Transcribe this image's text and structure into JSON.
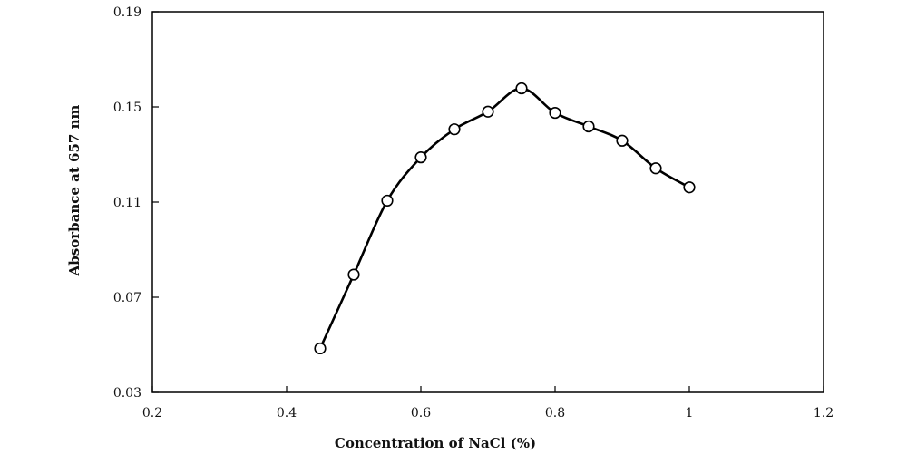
{
  "chart_data": {
    "type": "line",
    "title": "",
    "xlabel": "Concentration of NaCl (%)",
    "ylabel": "Absorbance at 657 nm",
    "xlim": [
      0.2,
      1.2
    ],
    "ylim": [
      0.03,
      0.19
    ],
    "xticks": [
      0.2,
      0.4,
      0.6,
      0.8,
      1.0,
      1.2
    ],
    "xtick_labels": [
      "0.2",
      "0.4",
      "0.6",
      "0.8",
      "1",
      "1.2"
    ],
    "yticks": [
      0.03,
      0.07,
      0.11,
      0.15,
      0.19
    ],
    "ytick_labels": [
      "0.03",
      "0.07",
      "0.11",
      "0.15",
      "0.19"
    ],
    "grid": false,
    "legend": "none",
    "marker": "open-circle",
    "line_color": "#000000",
    "series": [
      {
        "x": [
          0.45,
          0.5,
          0.55,
          0.6,
          0.65,
          0.7,
          0.75,
          0.8,
          0.85,
          0.9,
          0.95,
          1.0
        ],
        "y": [
          0.0485,
          0.0795,
          0.1106,
          0.1288,
          0.1406,
          0.148,
          0.1578,
          0.1475,
          0.1418,
          0.1358,
          0.1242,
          0.1162
        ],
        "error": [
          0.0006,
          0.0008,
          0.0008,
          0.0008,
          0.001,
          0.001,
          0.0012,
          0.001,
          0.001,
          0.001,
          0.001,
          0.0008
        ]
      }
    ]
  }
}
